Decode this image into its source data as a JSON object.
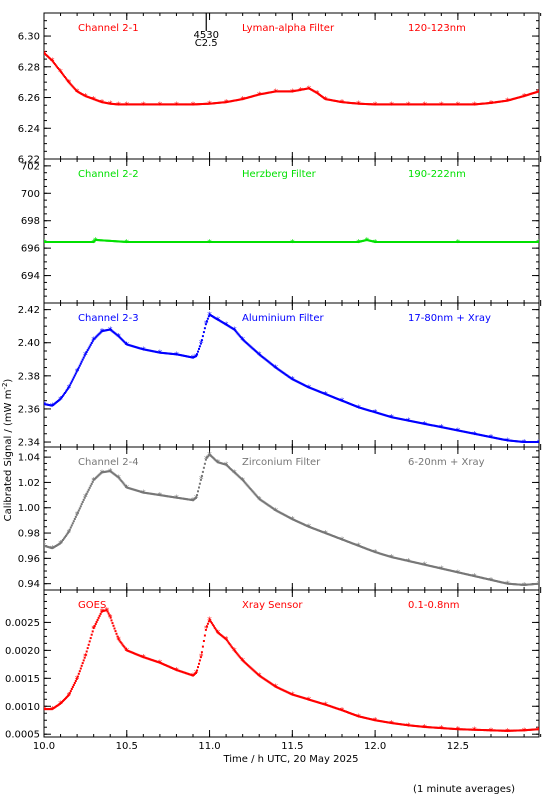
{
  "chart_data": [
    {
      "type": "scatter",
      "labels": [
        "Channel 2-1",
        "Lyman-alpha Filter",
        "120-123nm"
      ],
      "color": "#ff0000",
      "ylim": [
        6.22,
        6.315
      ],
      "yticks": [
        "6.22",
        "6.24",
        "6.26",
        "6.28",
        "6.30"
      ],
      "x": [
        10.0,
        10.05,
        10.1,
        10.15,
        10.2,
        10.25,
        10.3,
        10.35,
        10.4,
        10.45,
        10.5,
        10.6,
        10.7,
        10.8,
        10.9,
        11.0,
        11.1,
        11.2,
        11.3,
        11.4,
        11.5,
        11.55,
        11.6,
        11.65,
        11.7,
        11.8,
        11.9,
        12.0,
        12.1,
        12.2,
        12.3,
        12.4,
        12.5,
        12.6,
        12.7,
        12.8,
        12.9,
        12.99
      ],
      "y": [
        6.289,
        6.284,
        6.277,
        6.27,
        6.264,
        6.261,
        6.259,
        6.257,
        6.256,
        6.2555,
        6.2555,
        6.2555,
        6.2555,
        6.2555,
        6.2555,
        6.256,
        6.257,
        6.259,
        6.262,
        6.264,
        6.264,
        6.265,
        6.266,
        6.263,
        6.259,
        6.257,
        6.256,
        6.2555,
        6.2555,
        6.2555,
        6.2555,
        6.2555,
        6.2555,
        6.2555,
        6.2565,
        6.258,
        6.261,
        6.264
      ],
      "annotation": {
        "x": 10.98,
        "text1": "4530",
        "text2": "C2.5"
      }
    },
    {
      "type": "scatter",
      "labels": [
        "Channel 2-2",
        "Herzberg Filter",
        "190-222nm"
      ],
      "color": "#00e000",
      "ylim": [
        692.0,
        702.5
      ],
      "yticks": [
        "694",
        "696",
        "698",
        "700",
        "702"
      ],
      "x": [
        10.0,
        10.3,
        10.31,
        10.5,
        11.0,
        11.5,
        11.9,
        11.95,
        12.0,
        12.5,
        12.99
      ],
      "y": [
        696.45,
        696.45,
        696.6,
        696.45,
        696.45,
        696.45,
        696.45,
        696.6,
        696.45,
        696.45,
        696.45
      ]
    },
    {
      "type": "scatter",
      "labels": [
        "Channel 2-3",
        "Aluminium Filter",
        "17-80nm + Xray"
      ],
      "color": "#0000ff",
      "ylim": [
        2.337,
        2.424
      ],
      "yticks": [
        "2.34",
        "2.36",
        "2.38",
        "2.40",
        "2.42"
      ],
      "x": [
        10.0,
        10.05,
        10.1,
        10.15,
        10.2,
        10.25,
        10.3,
        10.35,
        10.4,
        10.45,
        10.5,
        10.6,
        10.7,
        10.8,
        10.9,
        10.92,
        10.95,
        10.98,
        11.0,
        11.05,
        11.1,
        11.15,
        11.2,
        11.3,
        11.4,
        11.5,
        11.6,
        11.7,
        11.8,
        11.9,
        12.0,
        12.1,
        12.2,
        12.3,
        12.4,
        12.5,
        12.6,
        12.7,
        12.8,
        12.9,
        12.99
      ],
      "y": [
        2.363,
        2.362,
        2.366,
        2.373,
        2.383,
        2.393,
        2.402,
        2.407,
        2.408,
        2.404,
        2.399,
        2.396,
        2.394,
        2.393,
        2.391,
        2.392,
        2.4,
        2.412,
        2.417,
        2.414,
        2.411,
        2.408,
        2.402,
        2.393,
        2.385,
        2.378,
        2.373,
        2.369,
        2.365,
        2.361,
        2.358,
        2.355,
        2.353,
        2.351,
        2.349,
        2.347,
        2.345,
        2.343,
        2.341,
        2.34,
        2.34
      ]
    },
    {
      "type": "scatter",
      "labels": [
        "Channel 2-4",
        "Zirconium Filter",
        "6-20nm + Xray"
      ],
      "color": "#777777",
      "ylim": [
        0.935,
        1.048
      ],
      "yticks": [
        "0.94",
        "0.96",
        "0.98",
        "1.00",
        "1.02",
        "1.04"
      ],
      "x": [
        10.0,
        10.05,
        10.1,
        10.15,
        10.2,
        10.25,
        10.3,
        10.35,
        10.4,
        10.45,
        10.5,
        10.6,
        10.7,
        10.8,
        10.9,
        10.92,
        10.95,
        10.98,
        11.0,
        11.05,
        11.1,
        11.15,
        11.2,
        11.3,
        11.4,
        11.5,
        11.6,
        11.7,
        11.8,
        11.9,
        12.0,
        12.1,
        12.2,
        12.3,
        12.4,
        12.5,
        12.6,
        12.7,
        12.8,
        12.9,
        12.99
      ],
      "y": [
        0.97,
        0.968,
        0.972,
        0.981,
        0.995,
        1.009,
        1.022,
        1.028,
        1.029,
        1.024,
        1.016,
        1.012,
        1.01,
        1.008,
        1.006,
        1.008,
        1.023,
        1.039,
        1.042,
        1.036,
        1.034,
        1.028,
        1.022,
        1.007,
        0.998,
        0.991,
        0.985,
        0.98,
        0.975,
        0.97,
        0.965,
        0.961,
        0.958,
        0.955,
        0.952,
        0.949,
        0.946,
        0.943,
        0.94,
        0.939,
        0.94
      ]
    },
    {
      "type": "scatter",
      "labels": [
        "GOES",
        "Xray Sensor",
        "0.1-0.8nm"
      ],
      "color": "#ff0000",
      "ylim": [
        0.00045,
        0.00308
      ],
      "yticks": [
        "0.0005",
        "0.0010",
        "0.0015",
        "0.0020",
        "0.0025"
      ],
      "x": [
        10.0,
        10.05,
        10.1,
        10.15,
        10.2,
        10.25,
        10.3,
        10.35,
        10.38,
        10.4,
        10.45,
        10.5,
        10.6,
        10.7,
        10.8,
        10.9,
        10.92,
        10.95,
        10.98,
        11.0,
        11.05,
        11.1,
        11.15,
        11.2,
        11.3,
        11.4,
        11.5,
        11.6,
        11.7,
        11.8,
        11.9,
        12.0,
        12.1,
        12.2,
        12.3,
        12.4,
        12.5,
        12.6,
        12.7,
        12.8,
        12.9,
        12.99
      ],
      "y": [
        0.00095,
        0.00095,
        0.00105,
        0.0012,
        0.0015,
        0.0019,
        0.0024,
        0.0027,
        0.00272,
        0.0026,
        0.0022,
        0.002,
        0.00188,
        0.00178,
        0.00165,
        0.00155,
        0.0016,
        0.0019,
        0.0024,
        0.00255,
        0.00232,
        0.0022,
        0.002,
        0.00182,
        0.00155,
        0.00135,
        0.00121,
        0.00112,
        0.00103,
        0.00093,
        0.00082,
        0.00075,
        0.0007,
        0.00066,
        0.00063,
        0.00061,
        0.00059,
        0.00058,
        0.00057,
        0.00056,
        0.00057,
        0.00059
      ]
    }
  ],
  "shared": {
    "xlabel": "Time / h UTC, 20 May 2025",
    "ylabel": "Calibrated Signal / (mW m",
    "ylabel_sup": "-2",
    "ylabel_close": ")",
    "xlim": [
      10.0,
      12.99
    ],
    "xticks": [
      "10.0",
      "10.5",
      "11.0",
      "11.5",
      "12.0",
      "12.5"
    ],
    "footnote": "(1 minute averages)"
  }
}
